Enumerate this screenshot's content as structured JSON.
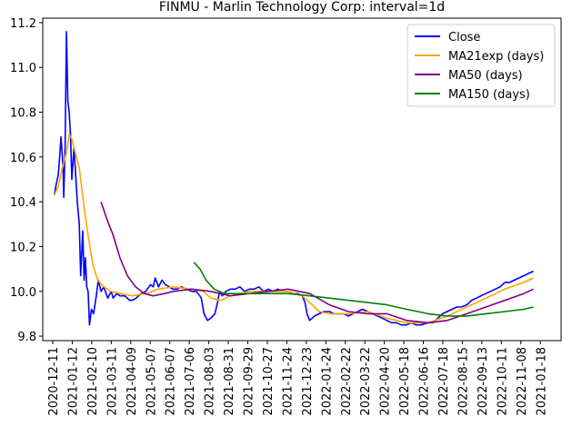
{
  "chart_data": {
    "type": "line",
    "title": "FINMU - Marlin Technology Corp: interval=1d",
    "xlabel": "",
    "ylabel": "",
    "ylim": [
      9.78,
      11.22
    ],
    "xlim": [
      "2020-12-26",
      "2023-01-30"
    ],
    "x_ticks": [
      "2020-12-11",
      "2021-01-12",
      "2021-02-10",
      "2021-03-11",
      "2021-04-09",
      "2021-05-07",
      "2021-06-07",
      "2021-07-06",
      "2021-08-03",
      "2021-08-31",
      "2021-09-29",
      "2021-10-27",
      "2021-11-24",
      "2021-12-23",
      "2022-01-24",
      "2022-02-22",
      "2022-03-22",
      "2022-04-20",
      "2022-05-18",
      "2022-06-16",
      "2022-07-18",
      "2022-08-15",
      "2022-09-13",
      "2022-10-11",
      "2022-11-08",
      "2021-01-18"
    ],
    "y_ticks": [
      "9.8",
      "10.0",
      "10.2",
      "10.4",
      "10.6",
      "10.8",
      "11.0",
      "11.2"
    ],
    "grid": false,
    "legend_position": "top-right",
    "colors": {
      "close": "#0000ff",
      "ma21": "#ffa500",
      "ma50": "#800080",
      "ma150": "#008000"
    },
    "series": [
      {
        "name": "Close",
        "color": "#0000ff",
        "points": [
          [
            "2021-01-12",
            10.43
          ],
          [
            "2021-01-15",
            10.48
          ],
          [
            "2021-01-18",
            10.52
          ],
          [
            "2021-01-20",
            10.6
          ],
          [
            "2021-01-22",
            10.69
          ],
          [
            "2021-01-25",
            10.55
          ],
          [
            "2021-01-26",
            10.42
          ],
          [
            "2021-01-28",
            10.65
          ],
          [
            "2021-01-30",
            11.16
          ],
          [
            "2021-02-01",
            10.85
          ],
          [
            "2021-02-03",
            10.8
          ],
          [
            "2021-02-05",
            10.7
          ],
          [
            "2021-02-07",
            10.5
          ],
          [
            "2021-02-10",
            10.64
          ],
          [
            "2021-02-12",
            10.55
          ],
          [
            "2021-02-15",
            10.4
          ],
          [
            "2021-02-18",
            10.3
          ],
          [
            "2021-02-20",
            10.07
          ],
          [
            "2021-02-23",
            10.27
          ],
          [
            "2021-02-25",
            10.05
          ],
          [
            "2021-02-27",
            10.15
          ],
          [
            "2021-03-01",
            10.02
          ],
          [
            "2021-03-03",
            10.0
          ],
          [
            "2021-03-05",
            9.85
          ],
          [
            "2021-03-08",
            9.92
          ],
          [
            "2021-03-11",
            9.9
          ],
          [
            "2021-03-15",
            9.98
          ],
          [
            "2021-03-18",
            10.05
          ],
          [
            "2021-03-22",
            10.0
          ],
          [
            "2021-03-26",
            10.02
          ],
          [
            "2021-04-01",
            9.97
          ],
          [
            "2021-04-06",
            10.0
          ],
          [
            "2021-04-09",
            9.97
          ],
          [
            "2021-04-14",
            9.99
          ],
          [
            "2021-04-19",
            9.98
          ],
          [
            "2021-04-26",
            9.98
          ],
          [
            "2021-05-03",
            9.96
          ],
          [
            "2021-05-07",
            9.96
          ],
          [
            "2021-05-13",
            9.97
          ],
          [
            "2021-05-20",
            9.99
          ],
          [
            "2021-05-27",
            10.0
          ],
          [
            "2021-06-03",
            10.03
          ],
          [
            "2021-06-07",
            10.02
          ],
          [
            "2021-06-10",
            10.06
          ],
          [
            "2021-06-15",
            10.02
          ],
          [
            "2021-06-20",
            10.05
          ],
          [
            "2021-06-25",
            10.03
          ],
          [
            "2021-07-01",
            10.02
          ],
          [
            "2021-07-06",
            10.01
          ],
          [
            "2021-07-12",
            10.01
          ],
          [
            "2021-07-19",
            10.02
          ],
          [
            "2021-07-26",
            10.01
          ],
          [
            "2021-08-03",
            10.0
          ],
          [
            "2021-08-10",
            10.0
          ],
          [
            "2021-08-17",
            9.97
          ],
          [
            "2021-08-21",
            9.9
          ],
          [
            "2021-08-26",
            9.87
          ],
          [
            "2021-08-31",
            9.88
          ],
          [
            "2021-09-06",
            9.9
          ],
          [
            "2021-09-10",
            9.95
          ],
          [
            "2021-09-13",
            10.0
          ],
          [
            "2021-09-17",
            9.98
          ],
          [
            "2021-09-22",
            10.0
          ],
          [
            "2021-09-29",
            10.01
          ],
          [
            "2021-10-06",
            10.01
          ],
          [
            "2021-10-13",
            10.02
          ],
          [
            "2021-10-20",
            10.0
          ],
          [
            "2021-10-27",
            10.01
          ],
          [
            "2021-11-03",
            10.01
          ],
          [
            "2021-11-10",
            10.02
          ],
          [
            "2021-11-17",
            10.0
          ],
          [
            "2021-11-24",
            10.01
          ],
          [
            "2021-12-01",
            10.0
          ],
          [
            "2021-12-08",
            10.01
          ],
          [
            "2021-12-15",
            10.0
          ],
          [
            "2021-12-23",
            10.0
          ],
          [
            "2021-12-30",
            9.99
          ],
          [
            "2022-01-06",
            9.99
          ],
          [
            "2022-01-13",
            9.98
          ],
          [
            "2022-01-17",
            9.95
          ],
          [
            "2022-01-20",
            9.9
          ],
          [
            "2022-01-24",
            9.87
          ],
          [
            "2022-01-31",
            9.89
          ],
          [
            "2022-02-07",
            9.9
          ],
          [
            "2022-02-14",
            9.91
          ],
          [
            "2022-02-22",
            9.91
          ],
          [
            "2022-03-01",
            9.9
          ],
          [
            "2022-03-08",
            9.9
          ],
          [
            "2022-03-15",
            9.9
          ],
          [
            "2022-03-22",
            9.89
          ],
          [
            "2022-03-29",
            9.9
          ],
          [
            "2022-04-05",
            9.91
          ],
          [
            "2022-04-12",
            9.92
          ],
          [
            "2022-04-20",
            9.91
          ],
          [
            "2022-04-27",
            9.9
          ],
          [
            "2022-05-04",
            9.89
          ],
          [
            "2022-05-11",
            9.88
          ],
          [
            "2022-05-18",
            9.87
          ],
          [
            "2022-05-25",
            9.86
          ],
          [
            "2022-06-01",
            9.86
          ],
          [
            "2022-06-08",
            9.85
          ],
          [
            "2022-06-16",
            9.85
          ],
          [
            "2022-06-23",
            9.86
          ],
          [
            "2022-06-30",
            9.85
          ],
          [
            "2022-07-07",
            9.85
          ],
          [
            "2022-07-18",
            9.86
          ],
          [
            "2022-07-25",
            9.86
          ],
          [
            "2022-08-01",
            9.88
          ],
          [
            "2022-08-08",
            9.9
          ],
          [
            "2022-08-15",
            9.91
          ],
          [
            "2022-08-22",
            9.92
          ],
          [
            "2022-08-29",
            9.93
          ],
          [
            "2022-09-05",
            9.93
          ],
          [
            "2022-09-13",
            9.94
          ],
          [
            "2022-09-20",
            9.96
          ],
          [
            "2022-09-27",
            9.97
          ],
          [
            "2022-10-04",
            9.98
          ],
          [
            "2022-10-11",
            9.99
          ],
          [
            "2022-10-18",
            10.0
          ],
          [
            "2022-10-25",
            10.01
          ],
          [
            "2022-11-01",
            10.02
          ],
          [
            "2022-11-08",
            10.04
          ],
          [
            "2022-11-15",
            10.04
          ],
          [
            "2022-11-22",
            10.05
          ],
          [
            "2022-11-29",
            10.06
          ],
          [
            "2022-12-06",
            10.07
          ],
          [
            "2022-12-13",
            10.08
          ],
          [
            "2022-12-20",
            10.09
          ]
        ]
      },
      {
        "name": "MA21exp (days)",
        "color": "#ffa500",
        "points": [
          [
            "2021-01-12",
            10.43
          ],
          [
            "2021-01-18",
            10.47
          ],
          [
            "2021-01-24",
            10.55
          ],
          [
            "2021-01-30",
            10.62
          ],
          [
            "2021-02-03",
            10.7
          ],
          [
            "2021-02-07",
            10.68
          ],
          [
            "2021-02-12",
            10.62
          ],
          [
            "2021-02-18",
            10.55
          ],
          [
            "2021-02-24",
            10.4
          ],
          [
            "2021-03-03",
            10.25
          ],
          [
            "2021-03-10",
            10.12
          ],
          [
            "2021-03-17",
            10.05
          ],
          [
            "2021-03-26",
            10.02
          ],
          [
            "2021-04-06",
            10.0
          ],
          [
            "2021-04-20",
            9.99
          ],
          [
            "2021-05-07",
            9.98
          ],
          [
            "2021-05-27",
            9.99
          ],
          [
            "2021-06-15",
            10.01
          ],
          [
            "2021-07-06",
            10.02
          ],
          [
            "2021-08-03",
            10.01
          ],
          [
            "2021-08-20",
            10.0
          ],
          [
            "2021-08-31",
            9.97
          ],
          [
            "2021-09-15",
            9.96
          ],
          [
            "2021-09-29",
            9.98
          ],
          [
            "2021-10-27",
            10.0
          ],
          [
            "2021-11-24",
            10.0
          ],
          [
            "2021-12-23",
            10.0
          ],
          [
            "2022-01-13",
            9.98
          ],
          [
            "2022-01-24",
            9.95
          ],
          [
            "2022-02-07",
            9.91
          ],
          [
            "2022-02-22",
            9.9
          ],
          [
            "2022-03-22",
            9.9
          ],
          [
            "2022-04-20",
            9.91
          ],
          [
            "2022-05-18",
            9.88
          ],
          [
            "2022-06-16",
            9.86
          ],
          [
            "2022-07-18",
            9.86
          ],
          [
            "2022-08-15",
            9.89
          ],
          [
            "2022-09-13",
            9.93
          ],
          [
            "2022-10-11",
            9.97
          ],
          [
            "2022-11-08",
            10.01
          ],
          [
            "2022-12-06",
            10.04
          ],
          [
            "2022-12-20",
            10.06
          ]
        ]
      },
      {
        "name": "MA50 (days)",
        "color": "#800080",
        "points": [
          [
            "2021-03-22",
            10.4
          ],
          [
            "2021-03-31",
            10.32
          ],
          [
            "2021-04-09",
            10.25
          ],
          [
            "2021-04-19",
            10.15
          ],
          [
            "2021-04-30",
            10.07
          ],
          [
            "2021-05-12",
            10.02
          ],
          [
            "2021-05-25",
            9.99
          ],
          [
            "2021-06-07",
            9.98
          ],
          [
            "2021-06-24",
            9.99
          ],
          [
            "2021-07-06",
            10.0
          ],
          [
            "2021-08-03",
            10.01
          ],
          [
            "2021-08-31",
            10.0
          ],
          [
            "2021-09-29",
            9.98
          ],
          [
            "2021-10-27",
            9.99
          ],
          [
            "2021-11-24",
            10.0
          ],
          [
            "2021-12-23",
            10.01
          ],
          [
            "2022-01-24",
            9.99
          ],
          [
            "2022-02-22",
            9.94
          ],
          [
            "2022-03-22",
            9.91
          ],
          [
            "2022-04-20",
            9.9
          ],
          [
            "2022-05-18",
            9.9
          ],
          [
            "2022-06-16",
            9.87
          ],
          [
            "2022-07-18",
            9.86
          ],
          [
            "2022-08-15",
            9.87
          ],
          [
            "2022-09-13",
            9.9
          ],
          [
            "2022-10-11",
            9.93
          ],
          [
            "2022-11-08",
            9.96
          ],
          [
            "2022-12-06",
            9.99
          ],
          [
            "2022-12-20",
            10.01
          ]
        ]
      },
      {
        "name": "MA150 (days)",
        "color": "#008000",
        "points": [
          [
            "2021-08-06",
            10.13
          ],
          [
            "2021-08-15",
            10.1
          ],
          [
            "2021-08-24",
            10.05
          ],
          [
            "2021-09-05",
            10.01
          ],
          [
            "2021-09-20",
            9.99
          ],
          [
            "2021-10-05",
            9.99
          ],
          [
            "2021-10-27",
            9.99
          ],
          [
            "2021-11-24",
            9.99
          ],
          [
            "2021-12-23",
            9.99
          ],
          [
            "2022-01-24",
            9.98
          ],
          [
            "2022-02-22",
            9.97
          ],
          [
            "2022-03-22",
            9.96
          ],
          [
            "2022-04-20",
            9.95
          ],
          [
            "2022-05-18",
            9.94
          ],
          [
            "2022-06-16",
            9.92
          ],
          [
            "2022-07-18",
            9.9
          ],
          [
            "2022-08-15",
            9.89
          ],
          [
            "2022-09-13",
            9.89
          ],
          [
            "2022-10-11",
            9.9
          ],
          [
            "2022-11-08",
            9.91
          ],
          [
            "2022-12-06",
            9.92
          ],
          [
            "2022-12-20",
            9.93
          ]
        ]
      }
    ]
  }
}
